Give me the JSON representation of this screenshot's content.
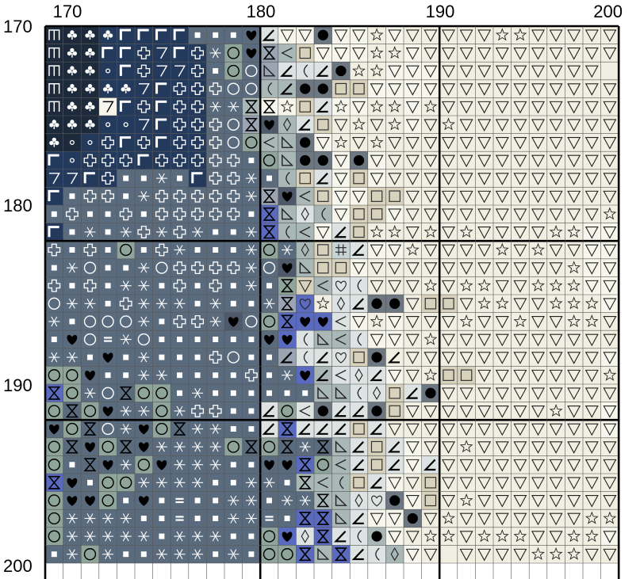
{
  "axes": {
    "x_ticks": [
      "170",
      "180",
      "190",
      "200"
    ],
    "y_ticks": [
      "170",
      "180",
      "190",
      "200"
    ],
    "x_range": [
      170,
      200
    ],
    "y_range": [
      170,
      200
    ],
    "grid_major_every": 10
  },
  "palette": {
    "A": {
      "bg": "#1c2a3c",
      "fg": "#ffffff"
    },
    "B": {
      "bg": "#243a5c",
      "fg": "#ffffff"
    },
    "C": {
      "bg": "#3f577a",
      "fg": "#ffffff"
    },
    "D": {
      "bg": "#5b6b7e",
      "fg": "#ffffff"
    },
    "E": {
      "bg": "#6c7781",
      "fg": "#000000"
    },
    "F": {
      "bg": "#7e8a96",
      "fg": "#000000"
    },
    "G": {
      "bg": "#6e7b7d",
      "fg": "#000000"
    },
    "H": {
      "bg": "#818296",
      "fg": "#000000"
    },
    "I": {
      "bg": "#9aa4b2",
      "fg": "#000000"
    },
    "J": {
      "bg": "#8fa49a",
      "fg": "#000000"
    },
    "K": {
      "bg": "#a9b8b7",
      "fg": "#000000"
    },
    "L": {
      "bg": "#5a6abf",
      "fg": "#000000"
    },
    "M": {
      "bg": "#c8d3d5",
      "fg": "#000000"
    },
    "N": {
      "bg": "#dde3e2",
      "fg": "#000000"
    },
    "O": {
      "bg": "#e7e6d8",
      "fg": "#000000"
    },
    "P": {
      "bg": "#f1efe1",
      "fg": "#000000"
    },
    "Q": {
      "bg": "#f7f6ec",
      "fg": "#000000"
    },
    "R": {
      "bg": "#d8d2bd",
      "fg": "#000000"
    },
    "S": {
      "bg": "#4e5a6a",
      "fg": "#000000"
    }
  },
  "symbol_names": {
    "m": "m-glyph",
    "c": "club",
    "L": "corner-glyph",
    "s": "solid-square",
    "h": "heart",
    "o": "circle",
    "d": "small-dot",
    "x": "asterisk",
    "p": "plus-outline",
    "7": "seven-glyph",
    "g": "angle-glyph",
    "t": "down-triangle",
    "S": "star",
    "b": "filled-circle",
    "q": "outlined-square",
    "z": "hourglass",
    "l": "less-than",
    "r": "right-triangle",
    "i": "diamond",
    "u": "left-paren",
    "e": "equals",
    "#": "hash",
    "v": "heart-outline",
    "n": "none"
  },
  "grid": [
    "AmAcAcBcBLBLBLBLDsDsDsDhNgQtQtEbQtQtPSQtPtPtPtPtPtPSPSPtPtPtPtPtPtPtPt",
    "AmAcAcBLBLBpB7BLBpDxJoDhIzKlRqQtQtQtPSPSQtPtPtPtPtPtPtPtPtPtPtPtPtPt",
    "AmAcAcBdBLBpB7B7BpDsJoDoIrNgNuNgEbPSPSQtQtQtPtPtPtPtPtPtPtPtPtPRPtPt",
    "AmAcAcBcBcB7BLBpBpDpDoDoKuKgEbEbRqRqQtQtQtQtPtPtPtPtPtPtPtPtPtPtPtPt",
    "AmAcAc37BLBpBLBpBpDxDxKzQzQSRqNgQSQtPSPSQtPSPtPtPtPtPtPtPtPtPtPtPtPt",
    "AcAcAcBdBdB7BLBpBpDpDoIzShKiNgRqPtPSPtPSQtPtPSPtPtPtPtPtPtPtPtPtPtPt",
    "AcAdBdBpBLBpBLBpBpDpDoJoKlKrEbQtPSPtPSPtPtPtPtPtPtPtPtPtPtPtPtPtPt",
    "BLBdBpBpBpBLBpBpBpDpDpDsJoKrEbEbQtEbQtPtPtPtPtPtPtPtPtPtPtPtPtPtPt",
    "B7B7BLBpDsDsDxDsBLDpDpDxDsKuRqNgQtRqQtPtPtPtPtPtPtPtPtPtPtPtPtPtPt",
    "BLDsDpDpDsDxDpDpDpDpDpDxIzShKlRqQtQtRqRqPtPtPtPtPtPtPtPtPtPtPtPt",
    "DsDpDsDsDpDsDpDpDpDpDpDsLzKrNiKuQtRqRqQtPtPtPtPtPtPtPtPtPtPtPtPS",
    "BLDsDxDsDxDpDxDpDxDsDsDxLzKuKlQtNgRqPSPSPtPSPtPSPtPtPtPtPSPS",
    "DpDsDpDsJoDsDpDxDsDsDsDxJoDxKiRqM#NgQtQtPSPtPtPtPtPSPtPSPtPt",
    "DsDxDoDsDsDxDoDpDpDpDpDxDoShKrRqRqQtPtPtPtPtPtPtPtPtPtPtPtPS",
    "DpDsDpDsDxDxDsDpDsDpDsDxDsJzRtKlNvNuPtPtPtPSPtPSPSPtPtPSPSPS",
    "DoDxDxDsDpDxDxDxDsDxDsDsDxIzLvPSNiNgEbEbPtRqRqPtPSPSPtPtPSPSPS",
    "DxDsDoDoDoDxDsDpDpDxShDoJoLzLhLhNlQtPSQtPtPtPtPSPtPtPSPtPtPSPSPt",
    "DsDhDoDeDxDoDsDsDsDsDsDsDhLhNuKrKlNuQtQtPtPSPtPtPtPtPtPtPtPtPtPt",
    "DxDxDsDhDsDxDsDsDsDpDoDsDsIgNuNgNvRqEbPgPtPtPtPtPtPtPtPtPtPtPt",
    "JoJoDhDsDsDxDxDsDsDsDsDpDsDxLhKgNlNiNgQtPtPSRqRqPtPtPtPtPtPtPtPS",
    "LzJoDxDoDzJoJoDsDxDsDsDsDsDsDsKrKrNuNiRqNgEbPtPtPtPtPtPtPtPtPtPtPS",
    "JoDzJoDhDxDxJoDxDpDpDsDsNgJoNlEbNgNgEbRqPtPtPtPtPtPtPtPtPSPtPt",
    "DhJoDzDoDxDhJoDzDxDxDsDsNgLzNgNgNgRqNgPtPtPtPtPtPtPtPtPtPtPtPt",
    "JoDzDhJoDzDhDxDxDxDxJoDzJoDzDxDzKrNgRqNgQtPtPtPSPtPtPtPtPtPtPtPt",
    "JoDsDzDhDxJoDhDxDxDxDsDsDhDhLzJoKlNgRqNgQtNgPtPtPtPtPtPtPtPtPtPtPt",
    "LzDhDsJoJoDxDxDxDxDsDsDxDxDsKzKlKuRqNgQtPtRqPtPtPtPtPtPtPtPtPtPt",
    "JoDhDhJoDsDhDsDeDsDsDxDxDsDxDxKzKrNiNvEbQtRqPtPSPtPtPtPtPtPtPtPtPS",
    "JoDxDxDxDxDsDsDeDsDsDxDxDeDsLzLzKrNgQtQtEbPtPSPtPtPtPtPtPtPtPSPS",
    "JoDxDxDxDxDxDsDxDxDxDsDsJoLhNiLzNgNuKbQtPtPSPSPtPSPSPSPtPtPSPS",
    "DsDxJoDxDsDsDxDxDxDsDxDsJoJoLzKrLzNgNuKiQtPtPRPtPtPtPtPSPSPSPtPt"
  ]
}
